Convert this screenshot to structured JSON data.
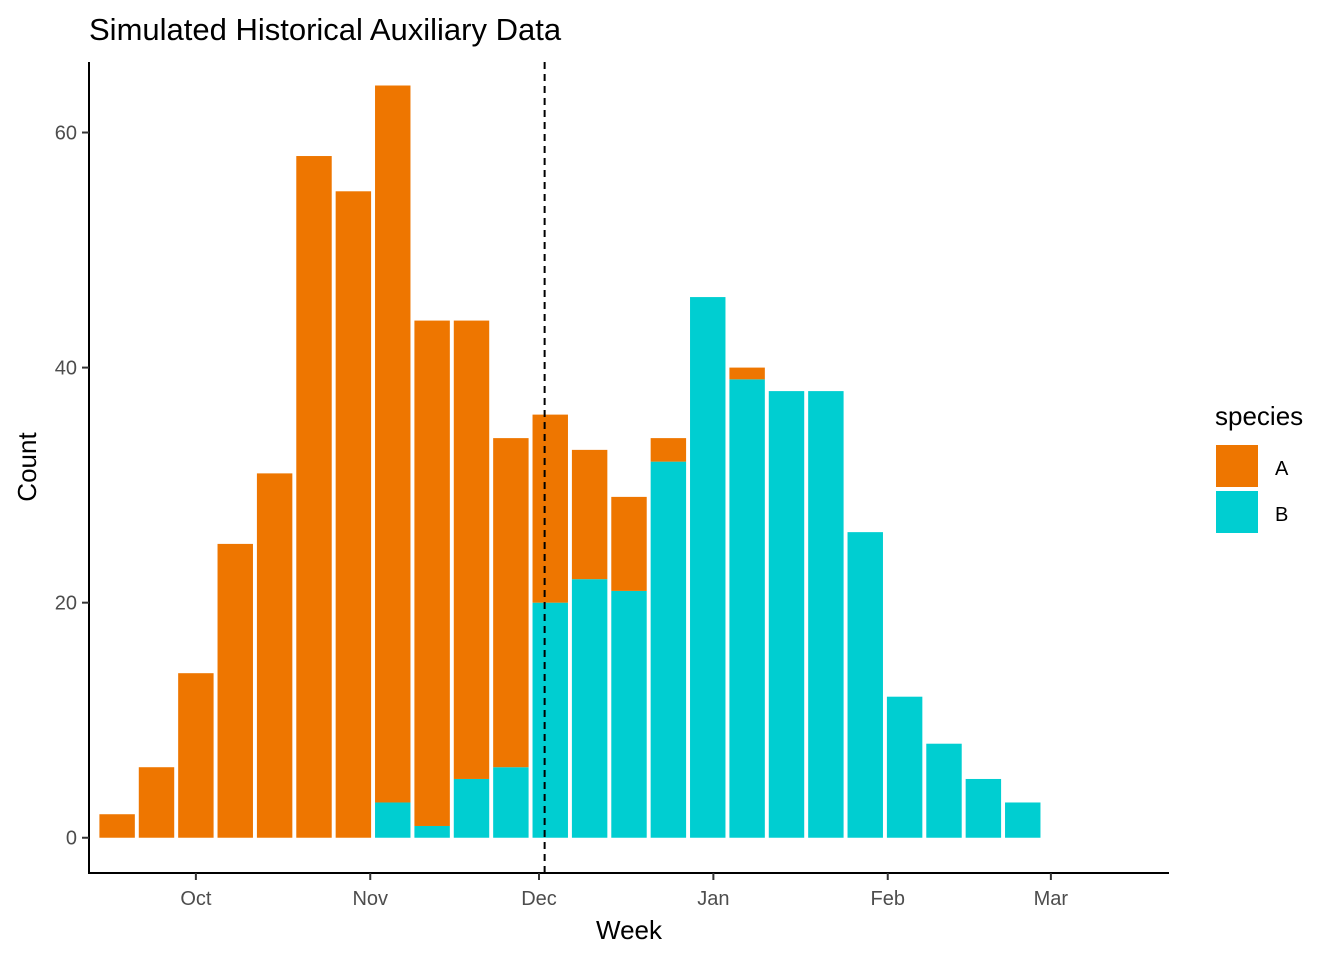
{
  "chart_data": {
    "type": "bar",
    "stacked": true,
    "title": "Simulated Historical Auxiliary Data",
    "xlabel": "Week",
    "ylabel": "Count",
    "ylim": [
      -3,
      66
    ],
    "yticks": [
      0,
      20,
      40,
      60
    ],
    "x_tick_labels": [
      "Oct",
      "Nov",
      "Dec",
      "Jan",
      "Feb",
      "Mar"
    ],
    "x_tick_dates": [
      "2023-10-01",
      "2023-11-01",
      "2023-12-01",
      "2024-01-01",
      "2024-02-01",
      "2024-03-01"
    ],
    "xlim": [
      "2023-09-12",
      "2024-03-22"
    ],
    "weeks": [
      "2023-09-17",
      "2023-09-24",
      "2023-10-01",
      "2023-10-08",
      "2023-10-15",
      "2023-10-22",
      "2023-10-29",
      "2023-11-05",
      "2023-11-12",
      "2023-11-19",
      "2023-11-26",
      "2023-12-03",
      "2023-12-10",
      "2023-12-17",
      "2023-12-24",
      "2023-12-31",
      "2024-01-07",
      "2024-01-14",
      "2024-01-21",
      "2024-01-28",
      "2024-02-04",
      "2024-02-11",
      "2024-02-18",
      "2024-02-25"
    ],
    "cutoff_date": "2023-12-02",
    "legend_title": "species",
    "legend_position": "right",
    "grid": false,
    "series": [
      {
        "name": "A",
        "color": "#EE7600",
        "values": [
          2,
          6,
          14,
          25,
          31,
          58,
          55,
          61,
          43,
          39,
          28,
          16,
          11,
          8,
          2,
          0,
          1,
          0,
          0,
          0,
          0,
          0,
          0,
          0
        ]
      },
      {
        "name": "B",
        "color": "#00CED1",
        "values": [
          0,
          0,
          0,
          0,
          0,
          0,
          0,
          3,
          1,
          5,
          6,
          20,
          22,
          21,
          32,
          46,
          39,
          38,
          38,
          26,
          12,
          8,
          5,
          3
        ]
      }
    ]
  }
}
